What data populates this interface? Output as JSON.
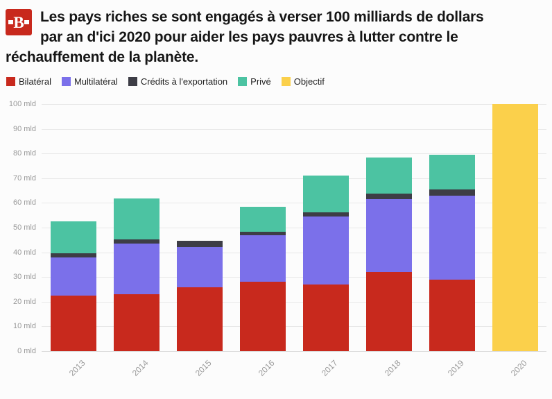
{
  "header": {
    "logo_text": "B",
    "title_line1": "Les pays riches se sont engagés à verser 100 milliards de dollars",
    "title_line2": "par an d'ici 2020 pour aider les pays pauvres à lutter contre le",
    "title_line3": "réchauffement de la planète."
  },
  "colors": {
    "brand_red": "#c8291d",
    "bilateral": "#c8291d",
    "multilateral": "#7b70ea",
    "export_credits": "#3d3d46",
    "prive": "#4cc3a2",
    "objectif": "#fbd04b",
    "grid": "#e8e8e8",
    "tick_text": "#9a9a9a"
  },
  "legend": [
    {
      "label": "Bilatéral",
      "color": "#c8291d"
    },
    {
      "label": "Multilatéral",
      "color": "#7b70ea"
    },
    {
      "label": "Crédits à l'exportation",
      "color": "#3d3d46"
    },
    {
      "label": "Privé",
      "color": "#4cc3a2"
    },
    {
      "label": "Objectif",
      "color": "#fbd04b"
    }
  ],
  "chart_data": {
    "type": "bar",
    "stacked": true,
    "title": "Les pays riches se sont engagés à verser 100 milliards de dollars par an d'ici 2020 pour aider les pays pauvres à lutter contre le réchauffement de la planète.",
    "categories": [
      "2013",
      "2014",
      "2015",
      "2016",
      "2017",
      "2018",
      "2019",
      "2020"
    ],
    "series": [
      {
        "name": "Bilatéral",
        "color": "#c8291d",
        "values": [
          22.5,
          23.1,
          25.9,
          28.0,
          27.0,
          32.0,
          28.8,
          0
        ]
      },
      {
        "name": "Multilatéral",
        "color": "#7b70ea",
        "values": [
          15.5,
          20.4,
          16.2,
          18.9,
          27.5,
          29.6,
          34.1,
          0
        ]
      },
      {
        "name": "Crédits à l'exportation",
        "color": "#3d3d46",
        "values": [
          1.6,
          1.6,
          2.5,
          1.5,
          1.8,
          2.1,
          2.6,
          0
        ]
      },
      {
        "name": "Privé",
        "color": "#4cc3a2",
        "values": [
          12.8,
          16.7,
          0,
          10.1,
          14.9,
          14.6,
          14.0,
          0
        ]
      },
      {
        "name": "Objectif",
        "color": "#fbd04b",
        "values": [
          0,
          0,
          0,
          0,
          0,
          0,
          0,
          100
        ]
      }
    ],
    "ylim": [
      0,
      100
    ],
    "y_tick_values": [
      0,
      10,
      20,
      30,
      40,
      50,
      60,
      70,
      80,
      90,
      100
    ],
    "y_ticks": [
      "0 mld",
      "10 mld",
      "20 mld",
      "30 mld",
      "40 mld",
      "50 mld",
      "60 mld",
      "70 mld",
      "80 mld",
      "90 mld",
      "100 mld"
    ],
    "grid": true,
    "legend_position": "top",
    "xlabel": "",
    "ylabel": ""
  }
}
